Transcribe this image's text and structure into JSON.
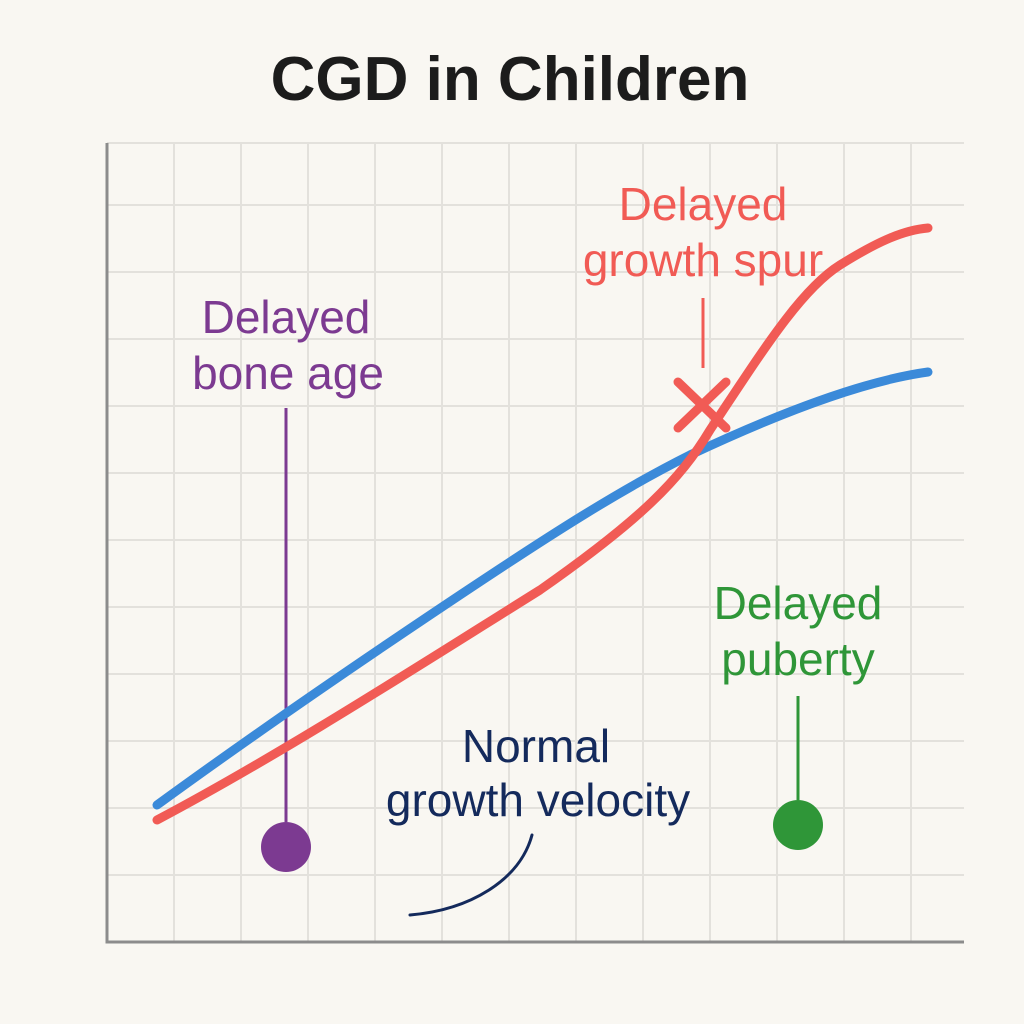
{
  "title": "CGD in Children",
  "colors": {
    "background": "#f9f7f2",
    "grid": "#e3e1dc",
    "axis": "#8c8c8c",
    "normal": "#3b8ad9",
    "delayed": "#f15b55",
    "bone_age": "#7c3a91",
    "puberty": "#2f9638",
    "velocity": "#142a5c"
  },
  "curves": {
    "normal_growth": {
      "name": "Normal growth",
      "color": "#3b8ad9"
    },
    "delayed_growth": {
      "name": "Delayed growth",
      "color": "#f15b55"
    }
  },
  "annotations": {
    "growth_spurt": {
      "line1": "Delayed",
      "line2": "growth spur",
      "marker": "x-marker"
    },
    "bone_age": {
      "line1": "Delayed",
      "line2": "bone age",
      "marker": "dot-marker"
    },
    "puberty": {
      "line1": "Delayed",
      "line2": "puberty",
      "marker": "dot-marker"
    },
    "velocity": {
      "line1": "Normal",
      "line2": "growth velocity"
    }
  }
}
